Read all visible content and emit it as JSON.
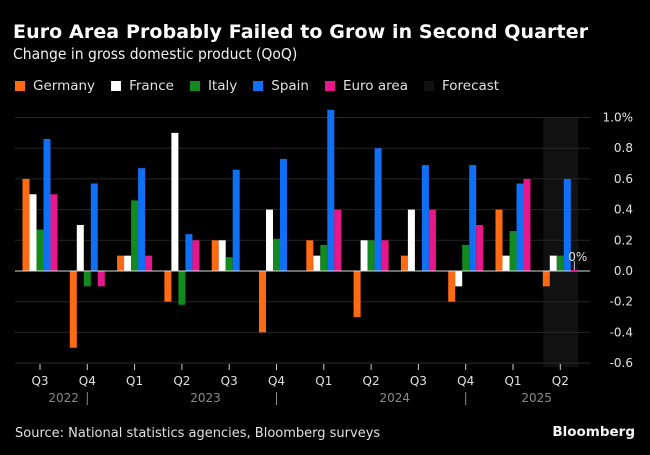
{
  "header": {
    "title": "Euro Area Probably Failed to Grow in Second Quarter",
    "subtitle": "Change in gross domestic product (QoQ)"
  },
  "legend": [
    {
      "label": "Germany",
      "color": "#ff6a13"
    },
    {
      "label": "France",
      "color": "#ffffff"
    },
    {
      "label": "Italy",
      "color": "#138a1f"
    },
    {
      "label": "Spain",
      "color": "#0f6ff5"
    },
    {
      "label": "Euro area",
      "color": "#e8168b"
    },
    {
      "label": "Forecast",
      "color": "#111111"
    }
  ],
  "footer": {
    "source": "Source: National statistics agencies, Bloomberg surveys",
    "brand": "Bloomberg"
  },
  "chart_data": {
    "type": "bar",
    "title": "Euro Area Probably Failed to Grow in Second Quarter",
    "subtitle": "Change in gross domestic product (QoQ)",
    "xlabel": "",
    "ylabel": "",
    "ylim": [
      -0.6,
      1.0
    ],
    "yticks": [
      1.0,
      0.8,
      0.6,
      0.4,
      0.2,
      0.0,
      -0.2,
      -0.4,
      -0.6
    ],
    "ytick_labels": [
      "1.0%",
      "0.8",
      "0.6",
      "0.4",
      "0.2",
      "0.0",
      "-0.2",
      "-0.4",
      "-0.6"
    ],
    "y_axis_position": "right",
    "grid": true,
    "legend_position": "top-left",
    "categories": [
      "Q3",
      "Q4",
      "Q1",
      "Q2",
      "Q3",
      "Q4",
      "Q1",
      "Q2",
      "Q3",
      "Q4",
      "Q1",
      "Q2"
    ],
    "year_groups": [
      {
        "label": "2022",
        "start": 0,
        "end": 1
      },
      {
        "label": "2023",
        "start": 2,
        "end": 5
      },
      {
        "label": "2024",
        "start": 6,
        "end": 9
      },
      {
        "label": "2025",
        "start": 10,
        "end": 11
      }
    ],
    "forecast_categories": [
      11
    ],
    "annotations": [
      {
        "text": "0%",
        "category": 11,
        "series": "Euro area"
      }
    ],
    "series": [
      {
        "name": "Germany",
        "color": "#ff6a13",
        "values": [
          0.6,
          -0.5,
          0.1,
          -0.2,
          0.2,
          -0.4,
          0.2,
          -0.3,
          0.1,
          -0.2,
          0.4,
          -0.1
        ]
      },
      {
        "name": "France",
        "color": "#ffffff",
        "values": [
          0.5,
          0.3,
          0.1,
          0.9,
          0.2,
          0.4,
          0.1,
          0.2,
          0.4,
          -0.1,
          0.1,
          0.1
        ]
      },
      {
        "name": "Italy",
        "color": "#138a1f",
        "values": [
          0.27,
          -0.1,
          0.46,
          -0.22,
          0.09,
          0.21,
          0.17,
          0.2,
          0.0,
          0.17,
          0.26,
          0.1
        ]
      },
      {
        "name": "Spain",
        "color": "#0f6ff5",
        "values": [
          0.86,
          0.57,
          0.67,
          0.24,
          0.66,
          0.73,
          1.05,
          0.8,
          0.69,
          0.69,
          0.57,
          0.6
        ]
      },
      {
        "name": "Euro area",
        "color": "#e8168b",
        "values": [
          0.5,
          -0.1,
          0.1,
          0.2,
          0.0,
          0.0,
          0.4,
          0.2,
          0.4,
          0.3,
          0.6,
          0.0
        ]
      }
    ]
  }
}
